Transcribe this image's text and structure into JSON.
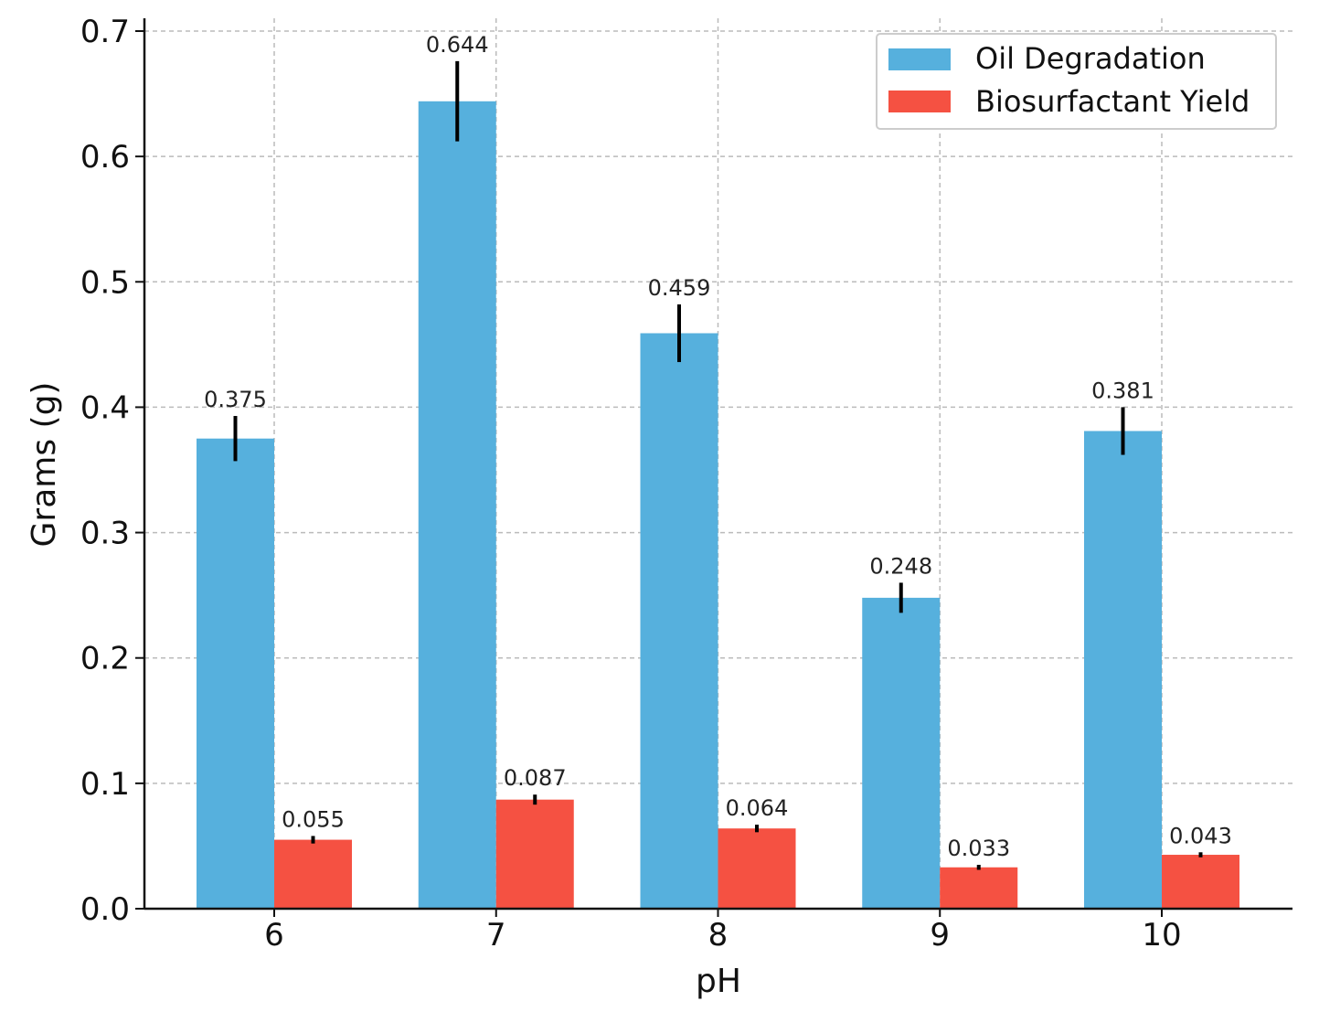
{
  "chart_data": {
    "type": "bar",
    "title": "",
    "xlabel": "pH",
    "ylabel": "Grams (g)",
    "categories": [
      "6",
      "7",
      "8",
      "9",
      "10"
    ],
    "ylim": [
      0,
      0.7
    ],
    "yticks": [
      "0.0",
      "0.1",
      "0.2",
      "0.3",
      "0.4",
      "0.5",
      "0.6",
      "0.7"
    ],
    "grid": true,
    "legend_position": "top-right",
    "series": [
      {
        "name": "Oil Degradation",
        "color": "#56B0DD",
        "values": [
          0.375,
          0.644,
          0.459,
          0.248,
          0.381
        ],
        "errors": [
          0.018,
          0.032,
          0.023,
          0.012,
          0.019
        ],
        "labels": [
          "0.375",
          "0.644",
          "0.459",
          "0.248",
          "0.381"
        ]
      },
      {
        "name": "Biosurfactant Yield",
        "color": "#F55142",
        "values": [
          0.055,
          0.087,
          0.064,
          0.033,
          0.043
        ],
        "errors": [
          0.003,
          0.004,
          0.003,
          0.002,
          0.002
        ],
        "labels": [
          "0.055",
          "0.087",
          "0.064",
          "0.033",
          "0.043"
        ]
      }
    ]
  }
}
